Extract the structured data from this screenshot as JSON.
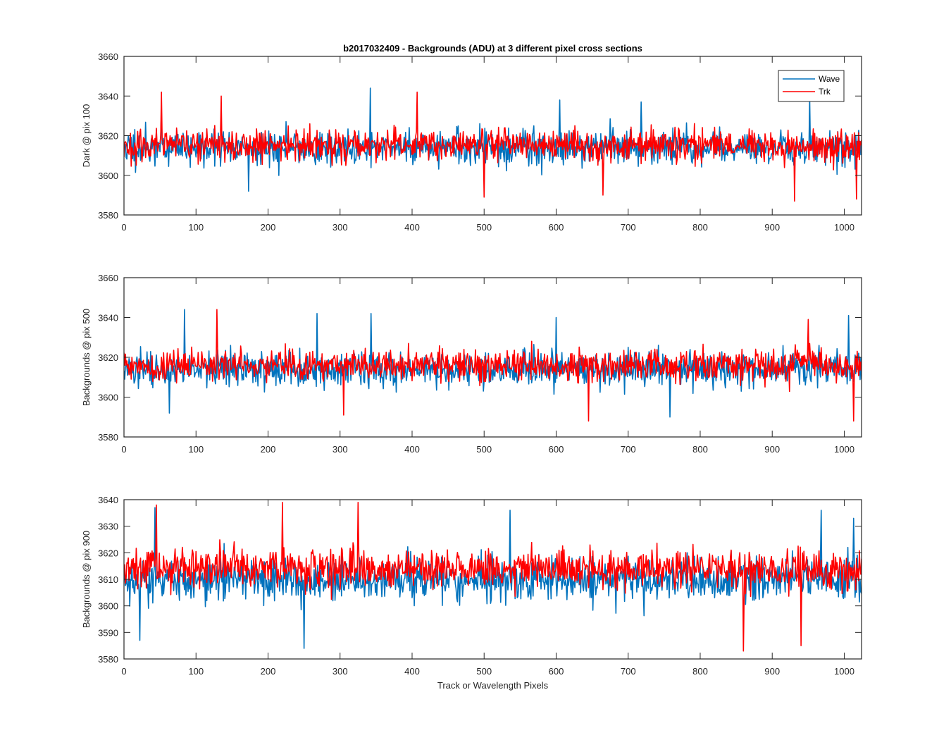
{
  "figure_title": "b2017032409 - Backgrounds (ADU) at 3 different pixel cross sections",
  "colors": {
    "wave": "#0072BD",
    "trk": "#FF0000",
    "axes": "#262626",
    "background": "#ffffff"
  },
  "chart_data": [
    {
      "type": "line",
      "title": "b2017032409 - Backgrounds (ADU) at 3 different pixel cross sections",
      "xlabel": "",
      "ylabel": "Dark @ pix 100",
      "xlim": [
        0,
        1024
      ],
      "ylim": [
        3580,
        3660
      ],
      "xticks": [
        "0",
        "100",
        "200",
        "300",
        "400",
        "500",
        "600",
        "700",
        "800",
        "900",
        "1000"
      ],
      "yticks": [
        "3580",
        "3600",
        "3620",
        "3640",
        "3660"
      ],
      "grid": false,
      "legend": {
        "position": "top-right",
        "entries": [
          "Wave",
          "Trk"
        ]
      },
      "series": [
        {
          "name": "Wave",
          "color": "#0072BD",
          "mean": 3614,
          "spread": 7,
          "min": 3592,
          "max": 3644,
          "seed": 11,
          "peaks": [
            [
              342,
              3644
            ],
            [
              952,
              3639
            ],
            [
              605,
              3638
            ],
            [
              52,
              3632
            ],
            [
              173,
              3592
            ],
            [
              718,
              3637
            ]
          ]
        },
        {
          "name": "Trk",
          "color": "#FF0000",
          "mean": 3615,
          "spread": 6.5,
          "min": 3587,
          "max": 3642,
          "seed": 23,
          "peaks": [
            [
              52,
              3642
            ],
            [
              407,
              3642
            ],
            [
              500,
              3589
            ],
            [
              931,
              3587
            ],
            [
              1017,
              3588
            ],
            [
              665,
              3590
            ],
            [
              135,
              3640
            ]
          ]
        }
      ]
    },
    {
      "type": "line",
      "title": "",
      "xlabel": "",
      "ylabel": "Backgrounds @ pix 500",
      "xlim": [
        0,
        1024
      ],
      "ylim": [
        3580,
        3660
      ],
      "xticks": [
        "0",
        "100",
        "200",
        "300",
        "400",
        "500",
        "600",
        "700",
        "800",
        "900",
        "1000"
      ],
      "yticks": [
        "3580",
        "3600",
        "3620",
        "3640",
        "3660"
      ],
      "grid": false,
      "legend": null,
      "series": [
        {
          "name": "Wave",
          "color": "#0072BD",
          "mean": 3614,
          "spread": 7,
          "min": 3590,
          "max": 3644,
          "seed": 37,
          "peaks": [
            [
              84,
              3644
            ],
            [
              268,
              3642
            ],
            [
              343,
              3642
            ],
            [
              1006,
              3641
            ],
            [
              600,
              3640
            ],
            [
              758,
              3590
            ],
            [
              63,
              3592
            ]
          ]
        },
        {
          "name": "Trk",
          "color": "#FF0000",
          "mean": 3616,
          "spread": 6.5,
          "min": 3588,
          "max": 3644,
          "seed": 41,
          "peaks": [
            [
              129,
              3644
            ],
            [
              645,
              3588
            ],
            [
              1013,
              3588
            ],
            [
              305,
              3591
            ],
            [
              950,
              3639
            ]
          ]
        }
      ]
    },
    {
      "type": "line",
      "title": "",
      "xlabel": "Track or Wavelength Pixels",
      "ylabel": "Backgrounds @ pix 900",
      "xlim": [
        0,
        1024
      ],
      "ylim": [
        3580,
        3640
      ],
      "xticks": [
        "0",
        "100",
        "200",
        "300",
        "400",
        "500",
        "600",
        "700",
        "800",
        "900",
        "1000"
      ],
      "yticks": [
        "3580",
        "3590",
        "3600",
        "3610",
        "3620",
        "3630",
        "3640"
      ],
      "grid": false,
      "legend": null,
      "series": [
        {
          "name": "Wave",
          "color": "#0072BD",
          "mean": 3610,
          "spread": 7,
          "min": 3584,
          "max": 3637,
          "seed": 53,
          "peaks": [
            [
              250,
              3584
            ],
            [
              22,
              3587
            ],
            [
              968,
              3636
            ],
            [
              536,
              3636
            ],
            [
              1013,
              3633
            ],
            [
              43,
              3637
            ]
          ]
        },
        {
          "name": "Trk",
          "color": "#FF0000",
          "mean": 3614,
          "spread": 6,
          "min": 3583,
          "max": 3639,
          "seed": 67,
          "peaks": [
            [
              220,
              3639
            ],
            [
              325,
              3639
            ],
            [
              860,
              3583
            ],
            [
              940,
              3585
            ],
            [
              45,
              3638
            ]
          ]
        }
      ]
    }
  ]
}
